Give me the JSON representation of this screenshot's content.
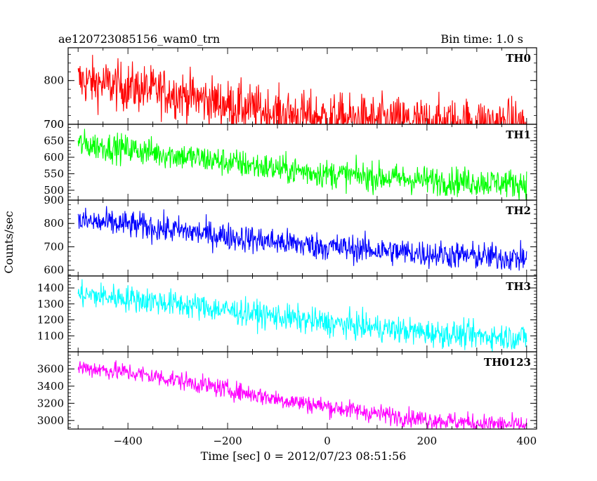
{
  "header": {
    "left": "ae120723085156_wam0_trn",
    "right": "Bin time: 1.0 s"
  },
  "chart_data": {
    "type": "line",
    "xlabel": "Time [sec] 0 = 2012/07/23 08:51:56",
    "ylabel": "Counts/sec",
    "xlim": [
      -520,
      420
    ],
    "x_range": [
      -500,
      400
    ],
    "bin_time_s": 1.0,
    "grid": false,
    "xticks": [
      -400,
      -200,
      0,
      200,
      400
    ],
    "xtick_labels": [
      "−400",
      "−200",
      "0",
      "200",
      "400"
    ],
    "panels": [
      {
        "name": "TH0",
        "color": "#ff0000",
        "ylim": [
          700,
          875
        ],
        "yticks": [
          700,
          800
        ],
        "ytick_labels": [
          "700",
          "800"
        ],
        "trend": [
          [
            -500,
            800
          ],
          [
            -400,
            785
          ],
          [
            -300,
            770
          ],
          [
            -200,
            745
          ],
          [
            -100,
            725
          ],
          [
            0,
            715
          ],
          [
            100,
            710
          ],
          [
            200,
            705
          ],
          [
            300,
            705
          ],
          [
            400,
            700
          ]
        ],
        "noise": 28
      },
      {
        "name": "TH1",
        "color": "#00ff00",
        "ylim": [
          470,
          700
        ],
        "yticks": [
          500,
          550,
          600,
          650,
          700
        ],
        "ytick_labels": [
          "500",
          "550",
          "600",
          "650",
          "700"
        ],
        "trend": [
          [
            -500,
            640
          ],
          [
            -400,
            625
          ],
          [
            -300,
            605
          ],
          [
            -200,
            585
          ],
          [
            -100,
            565
          ],
          [
            0,
            550
          ],
          [
            100,
            540
          ],
          [
            200,
            530
          ],
          [
            300,
            525
          ],
          [
            400,
            520
          ]
        ],
        "noise": 22
      },
      {
        "name": "TH2",
        "color": "#0000ff",
        "ylim": [
          575,
          900
        ],
        "yticks": [
          600,
          700,
          800,
          900
        ],
        "ytick_labels": [
          "600",
          "700",
          "800",
          "900"
        ],
        "trend": [
          [
            -500,
            810
          ],
          [
            -400,
            795
          ],
          [
            -300,
            770
          ],
          [
            -200,
            745
          ],
          [
            -100,
            720
          ],
          [
            0,
            700
          ],
          [
            100,
            685
          ],
          [
            200,
            670
          ],
          [
            300,
            660
          ],
          [
            400,
            650
          ]
        ],
        "noise": 30
      },
      {
        "name": "TH3",
        "color": "#00ffff",
        "ylim": [
          1000,
          1475
        ],
        "yticks": [
          1100,
          1200,
          1300,
          1400
        ],
        "ytick_labels": [
          "1100",
          "1200",
          "1300",
          "1400"
        ],
        "trend": [
          [
            -500,
            1360
          ],
          [
            -400,
            1335
          ],
          [
            -300,
            1300
          ],
          [
            -200,
            1260
          ],
          [
            -100,
            1220
          ],
          [
            0,
            1180
          ],
          [
            100,
            1150
          ],
          [
            200,
            1120
          ],
          [
            300,
            1100
          ],
          [
            400,
            1090
          ]
        ],
        "noise": 42
      },
      {
        "name": "TH0123",
        "color": "#ff00ff",
        "ylim": [
          2900,
          3800
        ],
        "yticks": [
          3000,
          3200,
          3400,
          3600
        ],
        "ytick_labels": [
          "3000",
          "3200",
          "3400",
          "3600"
        ],
        "trend": [
          [
            -500,
            3620
          ],
          [
            -400,
            3560
          ],
          [
            -300,
            3470
          ],
          [
            -200,
            3360
          ],
          [
            -100,
            3250
          ],
          [
            0,
            3160
          ],
          [
            100,
            3080
          ],
          [
            200,
            3010
          ],
          [
            300,
            2970
          ],
          [
            400,
            2940
          ]
        ],
        "noise": 55
      }
    ]
  }
}
